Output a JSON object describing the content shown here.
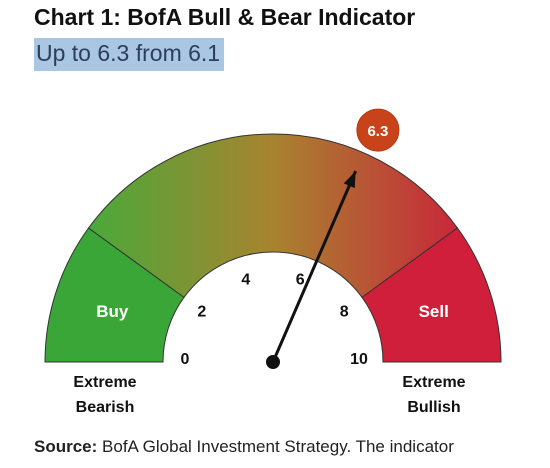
{
  "title": "Chart 1: BofA Bull & Bear Indicator",
  "subtitle": "Up to 6.3 from 6.1",
  "source": {
    "label": "Source:",
    "text": "BofA Global Investment Strategy. The indicator"
  },
  "colors": {
    "buy_zone": "#3aa637",
    "sell_zone": "#d01f3b",
    "gradient_left": "#4aa93a",
    "gradient_mid": "#a8832f",
    "gradient_right": "#c8283a",
    "marker": "#c8431a",
    "needle": "#111111"
  },
  "chart_data": {
    "type": "gauge",
    "value": 6.3,
    "value_label": "6.3",
    "previous_value": 6.1,
    "min": 0,
    "max": 10,
    "ticks": [
      0,
      2,
      4,
      6,
      8,
      10
    ],
    "tick_labels": [
      "0",
      "2",
      "4",
      "6",
      "8",
      "10"
    ],
    "zones": [
      {
        "label": "Buy",
        "from": 0,
        "to": 2
      },
      {
        "label": "Sell",
        "from": 8,
        "to": 10
      }
    ],
    "end_labels": {
      "left": [
        "Extreme",
        "Bearish"
      ],
      "right": [
        "Extreme",
        "Bullish"
      ]
    }
  }
}
